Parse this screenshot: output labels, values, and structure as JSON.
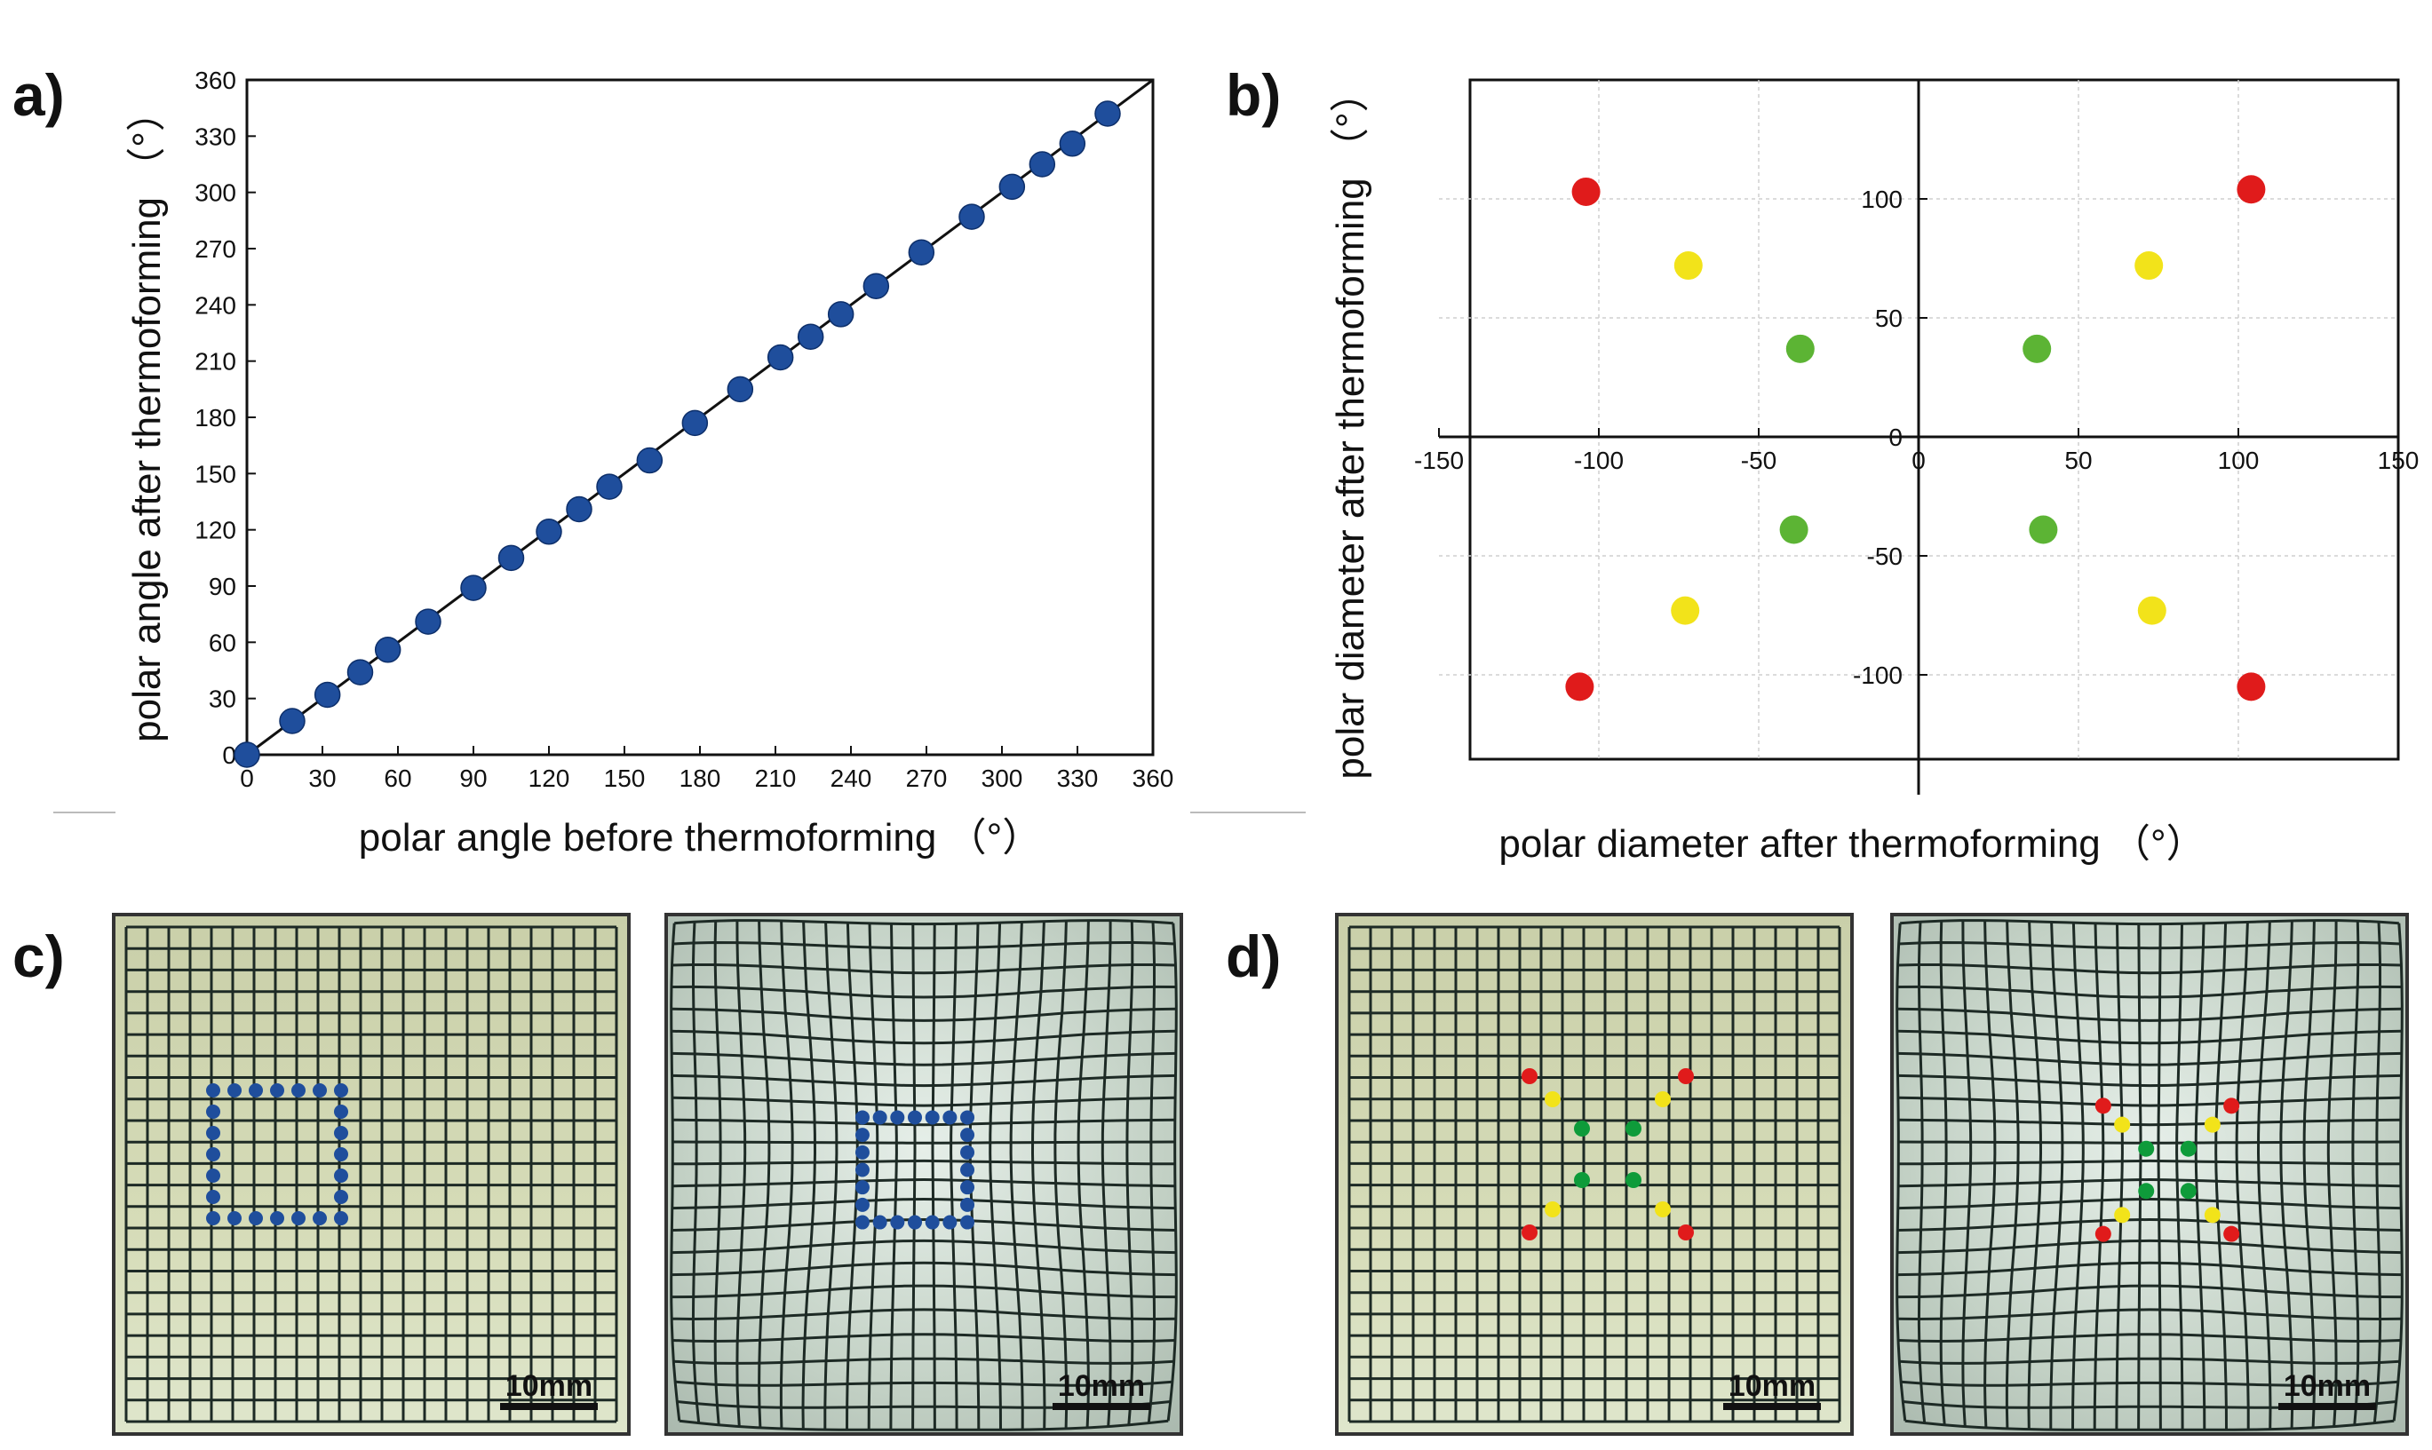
{
  "panels": {
    "a": "a)",
    "b": "b)",
    "c": "c)",
    "d": "d)"
  },
  "chart_data": [
    {
      "type": "scatter",
      "panel": "a",
      "xlabel": "polar angle before thermoforming （°）",
      "ylabel": "polar angle after thermoforming （°）",
      "xlim": [
        0,
        360
      ],
      "ylim": [
        0,
        360
      ],
      "xticks": [
        "0",
        "30",
        "60",
        "90",
        "120",
        "150",
        "180",
        "210",
        "240",
        "270",
        "300",
        "330",
        "360"
      ],
      "yticks": [
        "0",
        "30",
        "60",
        "90",
        "120",
        "150",
        "180",
        "210",
        "240",
        "270",
        "300",
        "330",
        "360"
      ],
      "reference_line": "y = x",
      "marker_color": "#1f4e9c",
      "series": [
        {
          "x": [
            0,
            18,
            32,
            45,
            56,
            72,
            90,
            105,
            120,
            132,
            144,
            160,
            178,
            196,
            212,
            224,
            236,
            250,
            268,
            288,
            304,
            316,
            328,
            342
          ],
          "y": [
            0,
            18,
            32,
            44,
            56,
            71,
            89,
            105,
            119,
            131,
            143,
            157,
            177,
            195,
            212,
            223,
            235,
            250,
            268,
            287,
            303,
            315,
            326,
            342
          ]
        }
      ]
    },
    {
      "type": "scatter",
      "panel": "b",
      "xlabel": "polar diameter after thermoforming （°）",
      "ylabel": "polar diameter after thermoforming （°）",
      "xlim": [
        -150,
        150
      ],
      "ylim": [
        -135,
        150
      ],
      "xticks": [
        "-150",
        "-100",
        "-50",
        "0",
        "50",
        "100",
        "150"
      ],
      "yticks": [
        "-100",
        "-50",
        "0",
        "50",
        "100"
      ],
      "grid": true,
      "series": [
        {
          "color": "#e01b1b",
          "points": [
            [
              -104,
              103
            ],
            [
              104,
              104
            ],
            [
              -106,
              -105
            ],
            [
              104,
              -105
            ]
          ]
        },
        {
          "color": "#f2e31a",
          "points": [
            [
              -72,
              72
            ],
            [
              72,
              72
            ],
            [
              -73,
              -73
            ],
            [
              73,
              -73
            ]
          ]
        },
        {
          "color": "#5cb434",
          "points": [
            [
              -37,
              37
            ],
            [
              37,
              37
            ],
            [
              -39,
              -39
            ],
            [
              39,
              -39
            ]
          ]
        }
      ]
    }
  ],
  "photos": {
    "scale_bar_label": "10mm",
    "c_before": {
      "markers": "blue square outline of 24 dots",
      "marker_color": "#1f4e9c"
    },
    "c_after": {
      "markers": "blue square outline of 24 dots, distorted",
      "marker_color": "#1f4e9c"
    },
    "d_before": {
      "markers": "red, yellow, green X pattern",
      "colors": [
        "#e01b1b",
        "#f2e31a",
        "#0e9b3a"
      ]
    },
    "d_after": {
      "markers": "red, yellow, green X pattern, distorted",
      "colors": [
        "#e01b1b",
        "#f2e31a",
        "#0e9b3a"
      ]
    }
  }
}
